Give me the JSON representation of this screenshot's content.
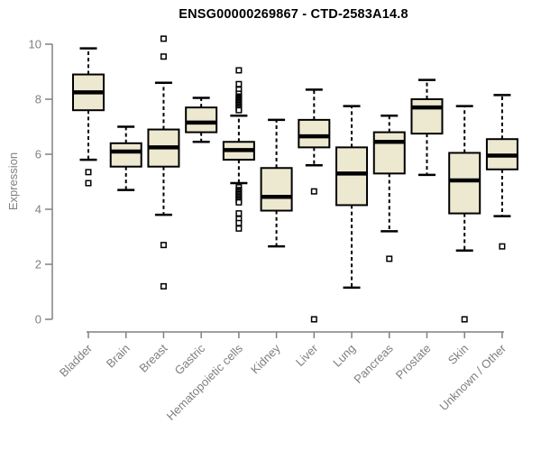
{
  "title": "ENSG00000269867 - CTD-2583A14.8",
  "colors": {
    "box_fill": "#EDE8D0",
    "box_border": "#000000",
    "axis": "#808080",
    "tick_label": "#7F7F7F",
    "title": "#000000",
    "background": "#FFFFFF"
  },
  "chart_data": {
    "type": "boxplot",
    "title": "ENSG00000269867 - CTD-2583A14.8",
    "xlabel": "",
    "ylabel": "Expression",
    "ylim": [
      0,
      10.3
    ],
    "yticks": [
      0,
      2,
      4,
      6,
      8,
      10
    ],
    "grid": false,
    "legend": null,
    "categories": [
      "Bladder",
      "Brain",
      "Breast",
      "Gastric",
      "Hematopoietic cells",
      "Kidney",
      "Liver",
      "Lung",
      "Pancreas",
      "Prostate",
      "Skin",
      "Unknown / Other"
    ],
    "series": [
      {
        "name": "Bladder",
        "whisker_low": 5.8,
        "q1": 7.6,
        "median": 8.25,
        "q3": 8.9,
        "whisker_high": 9.85,
        "outliers_low": [
          5.35,
          4.95
        ],
        "outliers_high": []
      },
      {
        "name": "Brain",
        "whisker_low": 4.7,
        "q1": 5.55,
        "median": 6.1,
        "q3": 6.4,
        "whisker_high": 7.0,
        "outliers_low": [],
        "outliers_high": []
      },
      {
        "name": "Breast",
        "whisker_low": 3.8,
        "q1": 5.55,
        "median": 6.25,
        "q3": 6.9,
        "whisker_high": 8.6,
        "outliers_low": [
          2.7,
          1.2
        ],
        "outliers_high": [
          10.2,
          9.55
        ]
      },
      {
        "name": "Gastric",
        "whisker_low": 6.45,
        "q1": 6.8,
        "median": 7.15,
        "q3": 7.7,
        "whisker_high": 8.05,
        "outliers_low": [],
        "outliers_high": []
      },
      {
        "name": "Hematopoietic cells",
        "whisker_low": 4.95,
        "q1": 5.8,
        "median": 6.15,
        "q3": 6.45,
        "whisker_high": 7.4,
        "outliers_low": [
          4.8,
          4.7,
          4.65,
          4.6,
          4.55,
          4.5,
          4.45,
          4.4,
          4.35,
          4.3,
          4.25,
          3.85,
          3.65,
          3.5,
          3.3
        ],
        "outliers_high": [
          9.05,
          8.55,
          8.35,
          8.2,
          8.1,
          8.05,
          8.0,
          7.95,
          7.9,
          7.85,
          7.8,
          7.75,
          7.7,
          7.65,
          7.6
        ]
      },
      {
        "name": "Kidney",
        "whisker_low": 2.65,
        "q1": 3.95,
        "median": 4.45,
        "q3": 5.5,
        "whisker_high": 7.25,
        "outliers_low": [],
        "outliers_high": []
      },
      {
        "name": "Liver",
        "whisker_low": 5.6,
        "q1": 6.25,
        "median": 6.65,
        "q3": 7.25,
        "whisker_high": 8.35,
        "outliers_low": [
          4.65,
          0
        ],
        "outliers_high": []
      },
      {
        "name": "Lung",
        "whisker_low": 1.15,
        "q1": 4.15,
        "median": 5.3,
        "q3": 6.25,
        "whisker_high": 7.75,
        "outliers_low": [],
        "outliers_high": []
      },
      {
        "name": "Pancreas",
        "whisker_low": 3.2,
        "q1": 5.3,
        "median": 6.45,
        "q3": 6.8,
        "whisker_high": 7.4,
        "outliers_low": [
          2.2
        ],
        "outliers_high": []
      },
      {
        "name": "Prostate",
        "whisker_low": 5.25,
        "q1": 6.75,
        "median": 7.7,
        "q3": 8.0,
        "whisker_high": 8.7,
        "outliers_low": [],
        "outliers_high": []
      },
      {
        "name": "Skin",
        "whisker_low": 2.5,
        "q1": 3.85,
        "median": 5.05,
        "q3": 6.05,
        "whisker_high": 7.75,
        "outliers_low": [
          0
        ],
        "outliers_high": []
      },
      {
        "name": "Unknown / Other",
        "whisker_low": 3.75,
        "q1": 5.45,
        "median": 5.95,
        "q3": 6.55,
        "whisker_high": 8.15,
        "outliers_low": [
          2.65
        ],
        "outliers_high": []
      }
    ]
  }
}
